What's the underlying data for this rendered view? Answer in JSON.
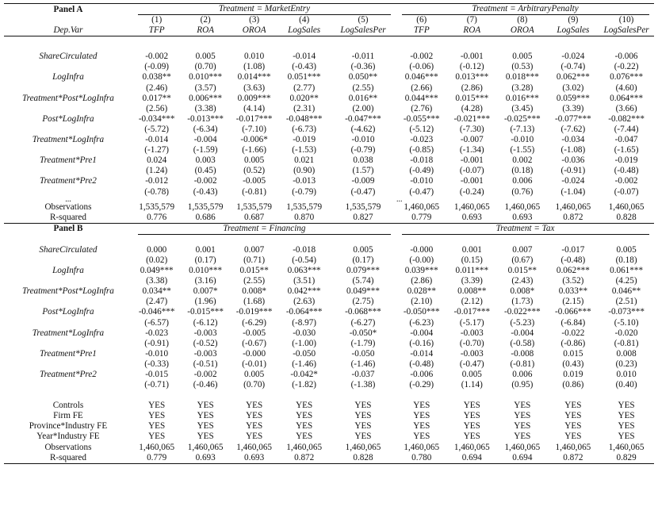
{
  "panelA": {
    "label": "Panel A",
    "group1": "Treatment = MarketEntry",
    "group2": "Treatment = ArbitraryPenalty",
    "colnums": [
      "(1)",
      "(2)",
      "(3)",
      "(4)",
      "(5)",
      "(6)",
      "(7)",
      "(8)",
      "(9)",
      "(10)"
    ],
    "depvar": "Dep.Var",
    "colvars": [
      "TFP",
      "ROA",
      "OROA",
      "LogSales",
      "LogSalesPer",
      "TFP",
      "ROA",
      "OROA",
      "LogSales",
      "LogSalesPer"
    ],
    "rows": [
      {
        "name": "ShareCirculated",
        "coef": [
          "-0.002",
          "0.005",
          "0.010",
          "-0.014",
          "-0.011",
          "-0.002",
          "-0.001",
          "0.005",
          "-0.024",
          "-0.006"
        ],
        "t": [
          "(-0.09)",
          "(0.70)",
          "(1.08)",
          "(-0.43)",
          "(-0.36)",
          "(-0.06)",
          "(-0.12)",
          "(0.53)",
          "(-0.74)",
          "(-0.22)"
        ]
      },
      {
        "name": "LogInfra",
        "coef": [
          "0.038**",
          "0.010***",
          "0.014***",
          "0.051***",
          "0.050**",
          "0.046***",
          "0.013***",
          "0.018***",
          "0.062***",
          "0.076***"
        ],
        "t": [
          "(2.46)",
          "(3.57)",
          "(3.63)",
          "(2.77)",
          "(2.55)",
          "(2.66)",
          "(2.86)",
          "(3.28)",
          "(3.02)",
          "(4.60)"
        ]
      },
      {
        "name": "Treatment*Post*LogInfra",
        "coef": [
          "0.017**",
          "0.006***",
          "0.009***",
          "0.020**",
          "0.016**",
          "0.044***",
          "0.015***",
          "0.016***",
          "0.059***",
          "0.064***"
        ],
        "t": [
          "(2.56)",
          "(3.38)",
          "(4.14)",
          "(2.31)",
          "(2.00)",
          "(2.76)",
          "(4.28)",
          "(3.45)",
          "(3.39)",
          "(3.66)"
        ]
      },
      {
        "name": "Post*LogInfra",
        "coef": [
          "-0.034***",
          "-0.013***",
          "-0.017***",
          "-0.048***",
          "-0.047***",
          "-0.055***",
          "-0.021***",
          "-0.025***",
          "-0.077***",
          "-0.082***"
        ],
        "t": [
          "(-5.72)",
          "(-6.34)",
          "(-7.10)",
          "(-6.73)",
          "(-4.62)",
          "(-5.12)",
          "(-7.30)",
          "(-7.13)",
          "(-7.62)",
          "(-7.44)"
        ]
      },
      {
        "name": "Treatment*LogInfra",
        "coef": [
          "-0.014",
          "-0.004",
          "-0.006*",
          "-0.019",
          "-0.010",
          "-0.023",
          "-0.007",
          "-0.010",
          "-0.034",
          "-0.047"
        ],
        "t": [
          "(-1.27)",
          "(-1.59)",
          "(-1.66)",
          "(-1.53)",
          "(-0.79)",
          "(-0.85)",
          "(-1.34)",
          "(-1.55)",
          "(-1.08)",
          "(-1.65)"
        ]
      },
      {
        "name": "Treatment*Pre1",
        "coef": [
          "0.024",
          "0.003",
          "0.005",
          "0.021",
          "0.038",
          "-0.018",
          "-0.001",
          "0.002",
          "-0.036",
          "-0.019"
        ],
        "t": [
          "(1.24)",
          "(0.45)",
          "(0.52)",
          "(0.90)",
          "(1.57)",
          "(-0.49)",
          "(-0.07)",
          "(0.18)",
          "(-0.91)",
          "(-0.48)"
        ]
      },
      {
        "name": "Treatment*Pre2",
        "coef": [
          "-0.012",
          "-0.002",
          "-0.005",
          "-0.013",
          "-0.009",
          "-0.010",
          "-0.001",
          "0.006",
          "-0.024",
          "-0.002"
        ],
        "t": [
          "(-0.78)",
          "(-0.43)",
          "(-0.81)",
          "(-0.79)",
          "(-0.47)",
          "(-0.47)",
          "(-0.24)",
          "(0.76)",
          "(-1.04)",
          "(-0.07)"
        ]
      }
    ],
    "ellipsis": "...",
    "obs_label": "Observations",
    "obs": [
      "1,535,579",
      "1,535,579",
      "1,535,579",
      "1,535,579",
      "1,535,579",
      "1,460,065",
      "1,460,065",
      "1,460,065",
      "1,460,065",
      "1,460,065"
    ],
    "r2_label": "R-squared",
    "r2": [
      "0.776",
      "0.686",
      "0.687",
      "0.870",
      "0.827",
      "0.779",
      "0.693",
      "0.693",
      "0.872",
      "0.828"
    ]
  },
  "panelB": {
    "label": "Panel B",
    "group1": "Treatment = Financing",
    "group2": "Treatment = Tax",
    "rows": [
      {
        "name": "ShareCirculated",
        "coef": [
          "0.000",
          "0.001",
          "0.007",
          "-0.018",
          "0.005",
          "-0.000",
          "0.001",
          "0.007",
          "-0.017",
          "0.005"
        ],
        "t": [
          "(0.02)",
          "(0.17)",
          "(0.71)",
          "(-0.54)",
          "(0.17)",
          "(-0.00)",
          "(0.15)",
          "(0.67)",
          "(-0.48)",
          "(0.18)"
        ]
      },
      {
        "name": "LogInfra",
        "coef": [
          "0.049***",
          "0.010***",
          "0.015**",
          "0.063***",
          "0.079***",
          "0.039***",
          "0.011***",
          "0.015**",
          "0.062***",
          "0.061***"
        ],
        "t": [
          "(3.38)",
          "(3.16)",
          "(2.55)",
          "(3.51)",
          "(5.74)",
          "(2.86)",
          "(3.39)",
          "(2.43)",
          "(3.52)",
          "(4.25)"
        ]
      },
      {
        "name": "Treatment*Post*LogInfra",
        "coef": [
          "0.034**",
          "0.007*",
          "0.008*",
          "0.042***",
          "0.049***",
          "0.028**",
          "0.008**",
          "0.008*",
          "0.033**",
          "0.046**"
        ],
        "t": [
          "(2.47)",
          "(1.96)",
          "(1.68)",
          "(2.63)",
          "(2.75)",
          "(2.10)",
          "(2.12)",
          "(1.73)",
          "(2.15)",
          "(2.51)"
        ]
      },
      {
        "name": "Post*LogInfra",
        "coef": [
          "-0.046***",
          "-0.015***",
          "-0.019***",
          "-0.064***",
          "-0.068***",
          "-0.050***",
          "-0.017***",
          "-0.022***",
          "-0.066***",
          "-0.073***"
        ],
        "t": [
          "(-6.57)",
          "(-6.12)",
          "(-6.29)",
          "(-8.97)",
          "(-6.27)",
          "(-6.23)",
          "(-5.17)",
          "(-5.23)",
          "(-6.84)",
          "(-5.10)"
        ]
      },
      {
        "name": "Treatment*LogInfra",
        "coef": [
          "-0.023",
          "-0.003",
          "-0.005",
          "-0.030",
          "-0.050*",
          "-0.004",
          "-0.003",
          "-0.004",
          "-0.022",
          "-0.020"
        ],
        "t": [
          "(-0.91)",
          "(-0.52)",
          "(-0.67)",
          "(-1.00)",
          "(-1.79)",
          "(-0.16)",
          "(-0.70)",
          "(-0.58)",
          "(-0.86)",
          "(-0.81)"
        ]
      },
      {
        "name": "Treatment*Pre1",
        "coef": [
          "-0.010",
          "-0.003",
          "-0.000",
          "-0.050",
          "-0.050",
          "-0.014",
          "-0.003",
          "-0.008",
          "0.015",
          "0.008"
        ],
        "t": [
          "(-0.33)",
          "(-0.51)",
          "(-0.01)",
          "(-1.46)",
          "(-1.46)",
          "(-0.48)",
          "(-0.47)",
          "(-0.81)",
          "(0.43)",
          "(0.23)"
        ]
      },
      {
        "name": "Treatment*Pre2",
        "coef": [
          "-0.015",
          "-0.002",
          "0.005",
          "-0.042*",
          "-0.037",
          "-0.006",
          "0.005",
          "0.006",
          "0.019",
          "0.010"
        ],
        "t": [
          "(-0.71)",
          "(-0.46)",
          "(0.70)",
          "(-1.82)",
          "(-1.38)",
          "(-0.29)",
          "(1.14)",
          "(0.95)",
          "(0.86)",
          "(0.40)"
        ]
      }
    ],
    "fe_rows": [
      {
        "name": "Controls",
        "vals": [
          "YES",
          "YES",
          "YES",
          "YES",
          "YES",
          "YES",
          "YES",
          "YES",
          "YES",
          "YES"
        ]
      },
      {
        "name": "Firm FE",
        "vals": [
          "YES",
          "YES",
          "YES",
          "YES",
          "YES",
          "YES",
          "YES",
          "YES",
          "YES",
          "YES"
        ]
      },
      {
        "name": "Province*Industry FE",
        "vals": [
          "YES",
          "YES",
          "YES",
          "YES",
          "YES",
          "YES",
          "YES",
          "YES",
          "YES",
          "YES"
        ]
      },
      {
        "name": "Year*Industry FE",
        "vals": [
          "YES",
          "YES",
          "YES",
          "YES",
          "YES",
          "YES",
          "YES",
          "YES",
          "YES",
          "YES"
        ]
      }
    ],
    "obs_label": "Observations",
    "obs": [
      "1,460,065",
      "1,460,065",
      "1,460,065",
      "1,460,065",
      "1,460,065",
      "1,460,065",
      "1,460,065",
      "1,460,065",
      "1,460,065",
      "1,460,065"
    ],
    "r2_label": "R-squared",
    "r2": [
      "0.779",
      "0.693",
      "0.693",
      "0.872",
      "0.828",
      "0.780",
      "0.694",
      "0.694",
      "0.872",
      "0.829"
    ]
  }
}
